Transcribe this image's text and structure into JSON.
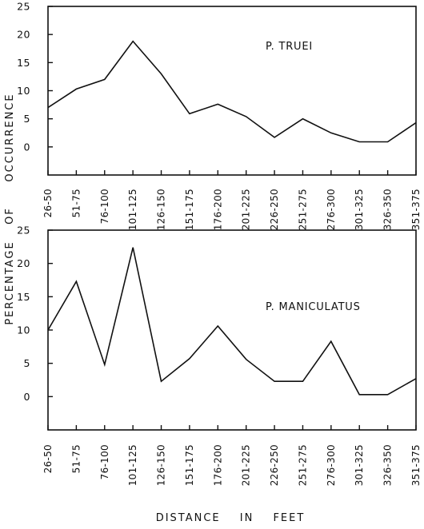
{
  "chart_data": [
    {
      "type": "line",
      "title": "",
      "annotation": "P. TRUEI",
      "categories": [
        "26-50",
        "51-75",
        "76-100",
        "101-125",
        "126-150",
        "151-175",
        "176-200",
        "201-225",
        "226-250",
        "251-275",
        "276-300",
        "301-325",
        "326-350",
        "351-375"
      ],
      "series": [
        {
          "name": "P. TRUEI",
          "values": [
            7,
            10.3,
            12,
            18.8,
            13,
            5.9,
            7.6,
            5.4,
            1.7,
            5,
            2.5,
            0.9,
            0.9,
            4.3
          ]
        }
      ],
      "yticks": [
        "0",
        "5",
        "10",
        "15",
        "20",
        "25"
      ],
      "ylim": [
        -5,
        25
      ],
      "grid": false
    },
    {
      "type": "line",
      "title": "",
      "annotation": "P. MANICULATUS",
      "categories": [
        "26-50",
        "51-75",
        "76-100",
        "101-125",
        "126-150",
        "151-175",
        "176-200",
        "201-225",
        "226-250",
        "251-275",
        "276-300",
        "301-325",
        "326-350",
        "351-375"
      ],
      "series": [
        {
          "name": "P. MANICULATUS",
          "values": [
            10,
            17.3,
            4.8,
            22.4,
            2.3,
            5.7,
            10.6,
            5.6,
            2.3,
            2.3,
            8.3,
            0.3,
            0.3,
            2.7
          ]
        }
      ],
      "yticks": [
        "0",
        "5",
        "10",
        "15",
        "20",
        "25"
      ],
      "ylim": [
        -5,
        25
      ],
      "grid": false
    }
  ],
  "ylabel": "PERCENTAGE OF OCCURRENCE",
  "ylabel_words": [
    "OCCURRENCE",
    "OF",
    "PERCENTAGE"
  ],
  "xlabel": "DISTANCE IN FEET"
}
